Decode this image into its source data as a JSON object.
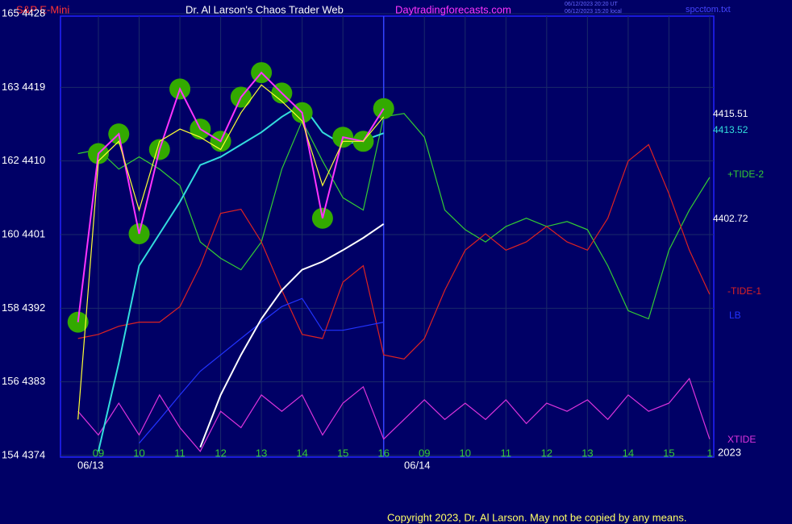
{
  "chart_data": {
    "type": "line",
    "title": "Dr. Al Larson's Chaos Trader Web",
    "subtitle": "S&P E-Mini",
    "site": "Daytradingforecasts.com",
    "timestamps": [
      "06/12/2023 20:20 UT",
      "06/12/2023 15:20 local"
    ],
    "file": "spcctom.txt",
    "dates": [
      "06/13",
      "06/14"
    ],
    "year": "2023",
    "copyright": "Copyright 2023, Dr. Al Larson. May not be copied by any means.",
    "xlim": [
      8.07,
      24.1
    ],
    "xticks": [
      {
        "value": 9,
        "label": "09"
      },
      10,
      11,
      12,
      13,
      14,
      15,
      16,
      {
        "value": 17,
        "label": "09"
      },
      {
        "value": 18,
        "label": "10"
      },
      {
        "value": 19,
        "label": "11"
      },
      {
        "value": 20,
        "label": "12"
      },
      {
        "value": 21,
        "label": "13"
      },
      {
        "value": 22,
        "label": "14"
      },
      {
        "value": 23,
        "label": "15"
      },
      {
        "value": 24,
        "label": "1"
      }
    ],
    "ylim": [
      4374,
      4428
    ],
    "yticks": [
      {
        "value": 4374,
        "label": "154  4374"
      },
      {
        "value": 4383,
        "label": "156  4383"
      },
      {
        "value": 4392,
        "label": "158  4392"
      },
      {
        "value": 4401,
        "label": "160  4401"
      },
      {
        "value": 4410,
        "label": "162  4410"
      },
      {
        "value": 4419,
        "label": "163  4419"
      },
      {
        "value": 4428,
        "label": "165  4428"
      }
    ],
    "grid": true,
    "divider_x": 16,
    "x": [
      8.5,
      9,
      9.5,
      10,
      10.5,
      11,
      11.5,
      12,
      12.5,
      13,
      13.5,
      14,
      14.5,
      15,
      15.5,
      16,
      16.5,
      17,
      17.5,
      18,
      18.5,
      19,
      19.5,
      20,
      20.5,
      21,
      21.5,
      22,
      22.5,
      23,
      23.5,
      24
    ],
    "series": [
      {
        "name": "+TIDE-2",
        "color": "#33cc33",
        "values": [
          4410.9,
          4411.4,
          4409,
          4410.5,
          4409,
          4407,
          4400.1,
          4398.1,
          4396.7,
          4400.1,
          4409,
          4414.9,
          4410,
          4405.5,
          4404,
          4415.4,
          4415.8,
          4412.9,
          4404,
          4401.6,
          4400.1,
          4402,
          4403,
          4402,
          4402.6,
          4401.6,
          4397.2,
          4391.7,
          4390.7,
          4399.1,
          4404,
          4408
        ]
      },
      {
        "name": "-TIDE-1",
        "color": "#dd2222",
        "values": [
          4388.3,
          4388.8,
          4389.8,
          4390.3,
          4390.3,
          4392.2,
          4397.2,
          4403.6,
          4404.1,
          4400.1,
          4394.2,
          4388.8,
          4388.3,
          4395.2,
          4397.2,
          4386.3,
          4385.8,
          4388.3,
          4394.2,
          4399.1,
          4401.1,
          4399.1,
          4400.1,
          4402,
          4400.1,
          4399.1,
          4403,
          4410,
          4412,
          4406,
          4399.1,
          4393.7
        ]
      },
      {
        "name": "LB",
        "color": "#2233ff",
        "values": [
          null,
          null,
          null,
          4375.5,
          4378.4,
          4381.4,
          4384.3,
          4386.3,
          4388.3,
          4390.3,
          4392.2,
          4393.2,
          4389.3,
          4389.3,
          4389.8,
          4390.3,
          null,
          null,
          null,
          null,
          null,
          null,
          null,
          null,
          null,
          null,
          null,
          null,
          null,
          null,
          null,
          null
        ]
      },
      {
        "name": "XTIDE",
        "color": "#dd33dd",
        "values": [
          4379.4,
          4376.5,
          4380.4,
          4376.5,
          4381.4,
          4377.4,
          4374.5,
          4379.4,
          4377.4,
          4381.4,
          4379.4,
          4381.4,
          4376.5,
          4380.4,
          4382.4,
          4376,
          4378.4,
          4380.8,
          4378.4,
          4380.4,
          4378.4,
          4380.8,
          4377.9,
          4380.4,
          4379.4,
          4380.8,
          4378.4,
          4381.4,
          4379.4,
          4380.4,
          4383.4,
          4376
        ]
      },
      {
        "color": "#ffffff",
        "values": [
          null,
          null,
          null,
          null,
          null,
          null,
          4375,
          4381.4,
          4386.3,
          4390.7,
          4394.2,
          4396.7,
          4397.7,
          4399.1,
          4400.6,
          4402.3,
          null,
          null,
          null,
          null,
          null,
          null,
          null,
          null,
          null,
          null,
          null,
          null,
          null,
          null,
          null,
          null
        ],
        "value_labels": "4402.72"
      },
      {
        "color": "#33dddd",
        "values": [
          null,
          4374.5,
          4385.3,
          4397.2,
          4401.1,
          4405,
          4409.5,
          4410.5,
          4412,
          4413.5,
          4415.4,
          4416.9,
          4413.5,
          4412,
          4412.5,
          4413.4,
          null,
          null,
          null,
          null,
          null,
          null,
          null,
          null,
          null,
          null,
          null,
          null,
          null,
          null,
          null,
          null
        ],
        "value_labels": "4413.52"
      },
      {
        "color": "#ff33ff",
        "bubbles": "#33aa00",
        "values": [
          4390.3,
          4410.9,
          4413.3,
          4401.1,
          4411.4,
          4418.8,
          4413.9,
          4412.4,
          4417.8,
          4420.8,
          4418.3,
          4415.9,
          4403,
          4412.9,
          4412.4,
          4416.4,
          null,
          null,
          null,
          null,
          null,
          null,
          null,
          null,
          null,
          null,
          null,
          null,
          null,
          null,
          null,
          null
        ],
        "value_labels": "4415.51"
      },
      {
        "color": "#ffff33",
        "values": [
          4378.4,
          4410,
          4412.4,
          4404,
          4412.4,
          4413.9,
          4412.9,
          4411.4,
          4415.9,
          4419.3,
          4417.3,
          4414.9,
          4407,
          4412.4,
          4412.4,
          4415.4,
          null,
          null,
          null,
          null,
          null,
          null,
          null,
          null,
          null,
          null,
          null,
          null,
          null,
          null,
          null,
          null
        ]
      }
    ]
  }
}
